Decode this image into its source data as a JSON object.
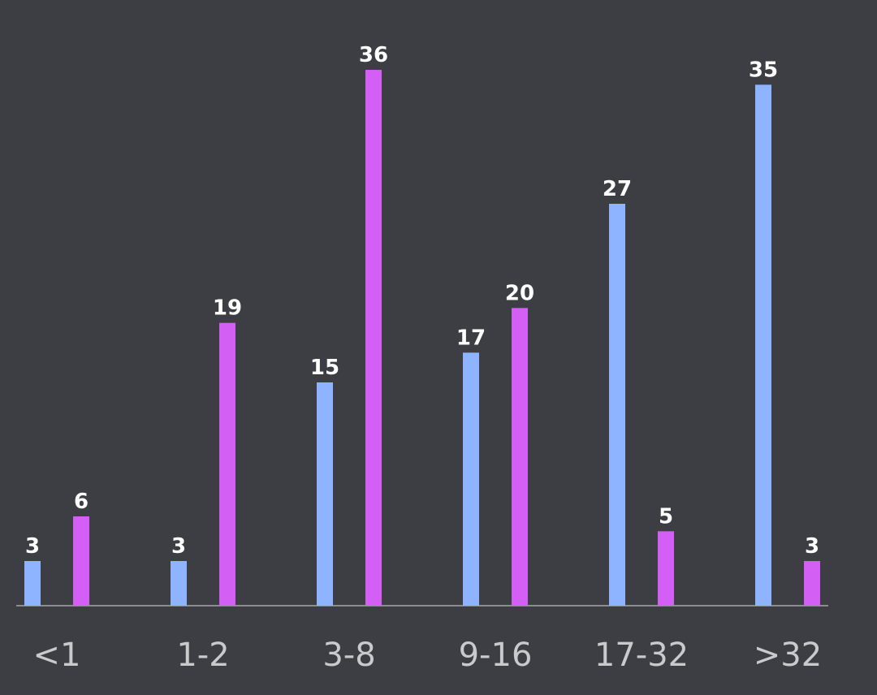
{
  "chart_data": {
    "type": "bar",
    "title": "",
    "xlabel": "",
    "ylabel": "",
    "categories": [
      "<1",
      "1-2",
      "3-8",
      "9-16",
      "17-32",
      ">32"
    ],
    "series": [
      {
        "values": [
          3,
          3,
          15,
          17,
          27,
          35
        ],
        "color": "#8fb4ff"
      },
      {
        "values": [
          6,
          19,
          36,
          20,
          5,
          3
        ],
        "color": "#d35ff5"
      }
    ],
    "ylim": [
      0,
      36
    ],
    "grid": false,
    "legend": "none"
  }
}
